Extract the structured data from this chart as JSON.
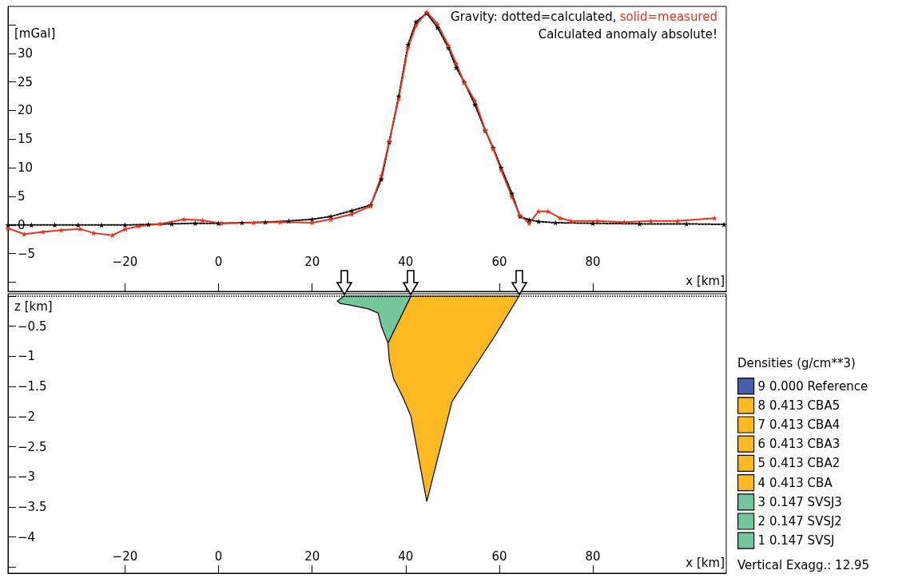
{
  "chart_data": [
    {
      "type": "line",
      "ylabel": "[mGal]",
      "xlabel": "x [km]",
      "marker": "star",
      "annotations": [
        "Gravity: dotted=calculated,",
        "solid=measured",
        "Calculated anomaly absolute!"
      ],
      "xlim": [
        -45,
        108.5
      ],
      "xticks": [
        -20,
        0,
        20,
        40,
        60,
        80
      ],
      "ylim": [
        -11.6,
        38.2
      ],
      "yticks": [
        {
          "value": -10,
          "label": null
        },
        -5,
        0,
        5,
        10,
        15,
        20,
        25,
        30,
        {
          "value": 35,
          "label": null
        }
      ],
      "series": [
        {
          "color": "#000000",
          "line_style": "dotted",
          "x": [
            -45,
            -40,
            -35,
            -30,
            -25,
            -20,
            -15,
            -10,
            -5,
            0,
            5,
            10,
            15,
            20,
            24,
            28.5,
            32.5,
            34.8,
            36.5,
            38.5,
            40.5,
            42.2,
            44.5,
            46.8,
            49.1,
            50.8,
            52.5,
            54.8,
            57,
            58.7,
            60.4,
            62.7,
            64.4,
            66.4,
            68.4,
            72,
            80,
            90,
            100,
            108
          ],
          "values": [
            0,
            0,
            0,
            0,
            0,
            0,
            0.1,
            0.2,
            0.3,
            0.3,
            0.4,
            0.5,
            0.7,
            1,
            1.5,
            2.5,
            3.5,
            8,
            14.5,
            22.5,
            31.5,
            35.5,
            37,
            34.5,
            31,
            27.5,
            25,
            21,
            16.5,
            13.5,
            10,
            5.5,
            1.5,
            0.9,
            0.6,
            0.4,
            0.3,
            0.2,
            0.2,
            0.1
          ]
        },
        {
          "color": "#e8321e",
          "line_style": "solid",
          "x": [
            -45,
            -41.5,
            -37.5,
            -33.6,
            -29.6,
            -26.7,
            -22.7,
            -19.9,
            -17,
            -12.5,
            -7.4,
            -3.4,
            0.6,
            7.5,
            13.2,
            20,
            24,
            28.5,
            32.5,
            34.8,
            36.5,
            38.5,
            40.5,
            42.2,
            44.5,
            46.8,
            49.1,
            50.8,
            52.5,
            54.8,
            57,
            58.7,
            60.4,
            62.7,
            64.4,
            66.4,
            68.4,
            70.4,
            73,
            75.3,
            81,
            86.7,
            92.4,
            98.1,
            106
          ],
          "values": [
            -0.6,
            -1.6,
            -1.2,
            -0.9,
            -0.7,
            -1.4,
            -1.8,
            -0.7,
            -0.2,
            0.2,
            1,
            0.8,
            0.3,
            0.4,
            0.5,
            0.4,
            1,
            1.9,
            3.3,
            8.6,
            14.7,
            22.1,
            31,
            34.9,
            37.2,
            35.1,
            31.4,
            28.2,
            24.9,
            21.7,
            16.6,
            13.3,
            9.6,
            4.9,
            1.7,
            0.3,
            2.4,
            2.4,
            1.2,
            0.7,
            0.7,
            0.5,
            0.7,
            0.7,
            1.2
          ]
        }
      ]
    },
    {
      "type": "area",
      "ylabel": "z [km]",
      "xlabel": "x [km]",
      "legend": "right",
      "legend_title": "Densities (g/cm**3)",
      "annotations": [
        "Vertical Exagg.: 12.95"
      ],
      "xlim": [
        -45,
        108.5
      ],
      "xticks": [
        -20,
        0,
        20,
        40,
        60,
        80
      ],
      "ylim": [
        -4.6,
        0.04
      ],
      "yticks": [
        {
          "value": 0,
          "label": null
        },
        -0.5,
        -1,
        -1.5,
        -2,
        -2.5,
        -3,
        -3.5,
        -4,
        {
          "value": -4.5,
          "label": null
        }
      ],
      "ref_lines": [
        {
          "axis": "y",
          "value": 0,
          "line_style": "dotted",
          "color": "#000000"
        }
      ],
      "series": [
        {
          "name": "9 0.000 Reference",
          "color": "#4b5ea9"
        },
        {
          "name": "8 0.413 CBA5",
          "color": "#fcb922"
        },
        {
          "name": "7 0.413 CBA4",
          "color": "#fcb922"
        },
        {
          "name": "6 0.413 CBA3",
          "color": "#fcb922"
        },
        {
          "name": "5 0.413 CBA2",
          "color": "#fcb922"
        },
        {
          "name": "4 0.413 CBA",
          "color": "#fcb922",
          "x": [
            41.1,
            64.2,
            59.3,
            49.9,
            44.5,
            41.1,
            39.4,
            37.4,
            36.5,
            36.2
          ],
          "values": [
            0,
            0,
            -0.63,
            -1.75,
            -3.41,
            -1.99,
            -1.68,
            -1.37,
            -1.07,
            -0.78
          ]
        },
        {
          "name": "3 0.147 SVSJ3",
          "color": "#74c69d"
        },
        {
          "name": "2 0.147 SVSJ2",
          "color": "#74c69d"
        },
        {
          "name": "1 0.147 SVSJ",
          "color": "#74c69d",
          "x": [
            26.8,
            25.4,
            26,
            28.3,
            32,
            34.1,
            34.8,
            36.2,
            41.1
          ],
          "values": [
            0,
            -0.08,
            -0.12,
            -0.15,
            -0.21,
            -0.28,
            -0.5,
            -0.78,
            0
          ]
        }
      ]
    }
  ]
}
